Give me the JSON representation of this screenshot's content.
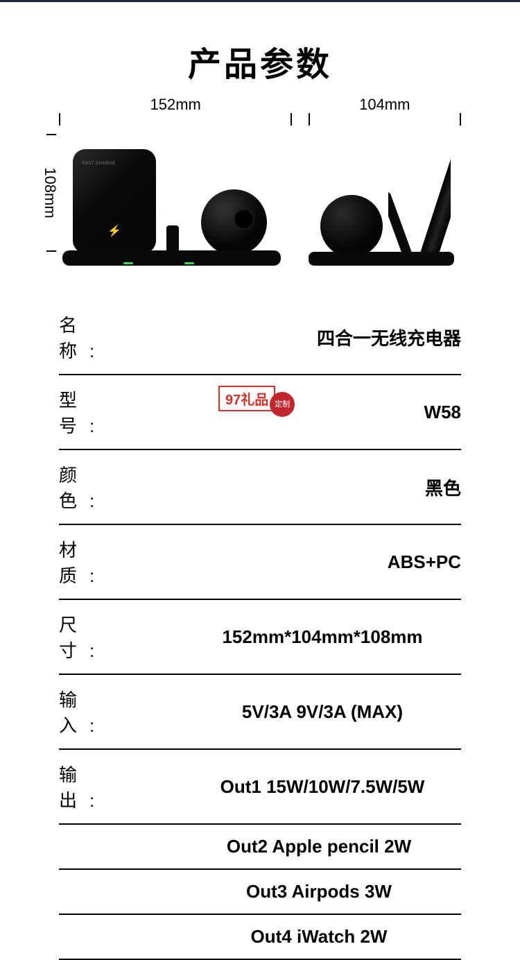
{
  "title": "产品参数",
  "dimensions": {
    "width_label": "152mm",
    "depth_label": "104mm",
    "height_label": "108mm"
  },
  "watermark": {
    "text": "97礼品",
    "seal": "定制"
  },
  "specs": [
    {
      "label": "名　称:",
      "value": "四合一无线充电器",
      "align": "right"
    },
    {
      "label": "型　号:",
      "value": "W58",
      "align": "right",
      "watermark": true
    },
    {
      "label": "颜　色:",
      "value": "黑色",
      "align": "right"
    },
    {
      "label": "材　质:",
      "value": "ABS+PC",
      "align": "right"
    },
    {
      "label": "尺　寸:",
      "value": "152mm*104mm*108mm",
      "align": "center"
    },
    {
      "label": "输　入:",
      "value": "5V/3A  9V/3A (MAX)",
      "align": "center"
    },
    {
      "label": "输　出:",
      "value": "Out1 15W/10W/7.5W/5W",
      "align": "center"
    }
  ],
  "extra_outputs": [
    "Out2 Apple pencil 2W",
    "Out3 Airpods 3W",
    "Out4 iWatch 2W"
  ],
  "colors": {
    "text": "#000000",
    "border": "#000000",
    "product": "#0a0a0a",
    "led": "#3fd85f",
    "watermark_red": "#d4302a",
    "seal_red": "#c1272d",
    "background": "#ffffff"
  },
  "typography": {
    "title_fontsize": 48,
    "spec_fontsize": 26,
    "dim_fontsize": 22
  }
}
